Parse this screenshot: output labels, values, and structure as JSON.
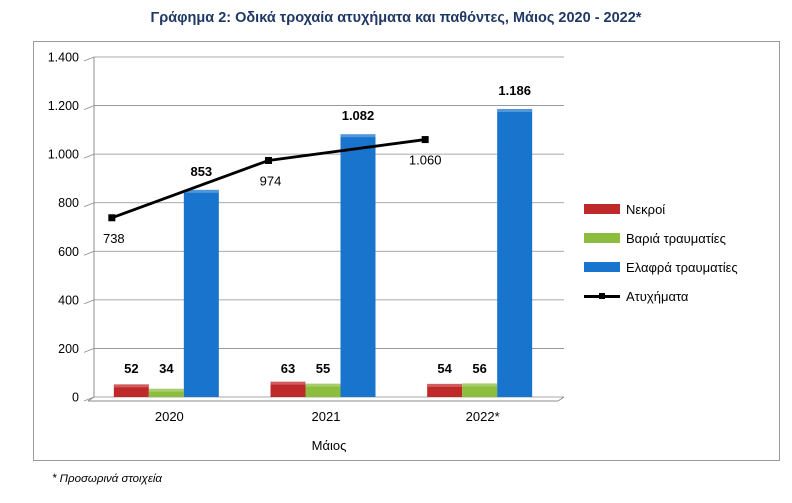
{
  "chart_data": {
    "type": "bar",
    "title": "Γράφημα 2: Οδικά τροχαία ατυχήματα και παθόντες, Μάιος 2020 - 2022*",
    "xlabel": "Μάιος",
    "ylabel": "",
    "categories": [
      "2020",
      "2021",
      "2022*"
    ],
    "ylim": [
      0,
      1400
    ],
    "yticks": [
      0,
      200,
      400,
      600,
      800,
      1000,
      1200,
      1400
    ],
    "ytick_labels": [
      "0",
      "200",
      "400",
      "600",
      "800",
      "1.000",
      "1.200",
      "1.400"
    ],
    "series": [
      {
        "name": "Νεκροί",
        "kind": "bar",
        "color": "#c0292a",
        "values": [
          52,
          63,
          54
        ],
        "labels": [
          "52",
          "63",
          "54"
        ]
      },
      {
        "name": "Βαριά τραυματίες",
        "kind": "bar",
        "color": "#8cbd3c",
        "values": [
          34,
          55,
          56
        ],
        "labels": [
          "34",
          "55",
          "56"
        ]
      },
      {
        "name": "Ελαφρά τραυματίες",
        "kind": "bar",
        "color": "#1874cd",
        "values": [
          853,
          1082,
          1186
        ],
        "labels": [
          "853",
          "1.082",
          "1.186"
        ]
      },
      {
        "name": "Ατυχήματα",
        "kind": "line",
        "color": "#000000",
        "values": [
          738,
          974,
          1060
        ],
        "labels": [
          "738",
          "974",
          "1.060"
        ]
      }
    ],
    "grid": true,
    "legend_position": "right"
  },
  "footnote": "* Προσωρινά στοιχεία"
}
